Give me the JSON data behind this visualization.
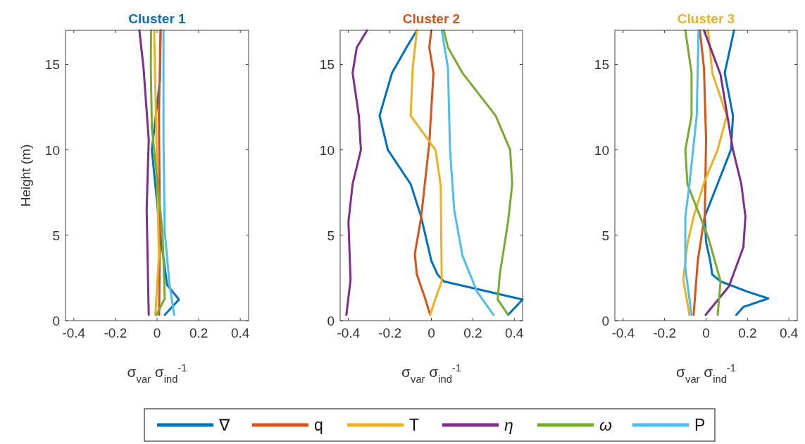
{
  "chart_data": [
    {
      "type": "line",
      "title": "Cluster 1",
      "xlabel": "σ$_{var}$ σ$_{ind}$$^{-1}$",
      "ylabel": "Height (m)",
      "xlim": [
        -0.44,
        0.44
      ],
      "ylim": [
        0,
        17
      ],
      "xticks": [
        -0.4,
        -0.2,
        0,
        0.2,
        0.4
      ],
      "yticks": [
        0,
        5,
        10,
        15
      ],
      "grid": false,
      "legend": "bottom",
      "line_style": "solid",
      "series": [
        {
          "name": "∇",
          "color": "#0072bd",
          "x": [
            0.037,
            0.105,
            0.048,
            0.014,
            -0.025,
            0.014,
            0.017
          ],
          "values": [
            0.34,
            1.24,
            2.1,
            5.2,
            10,
            14.1,
            17
          ]
        },
        {
          "name": "q",
          "color": "#d95319",
          "x": [
            0.01,
            0.014,
            0.009,
            0.017
          ],
          "values": [
            0.34,
            5.2,
            12,
            17
          ]
        },
        {
          "name": "T",
          "color": "#edb120",
          "x": [
            -0.008,
            0.009,
            -0.003,
            -0.014
          ],
          "values": [
            0.34,
            3.8,
            10.6,
            17
          ]
        },
        {
          "name": "η",
          "color": "#7e2f8e",
          "x": [
            -0.04,
            -0.05,
            -0.04,
            -0.065,
            -0.085
          ],
          "values": [
            0.34,
            6.5,
            10.6,
            14.8,
            17
          ]
        },
        {
          "name": "ω",
          "color": "#77ac30",
          "x": [
            -0.003,
            0.037,
            0.026,
            -0.025,
            -0.03,
            -0.029
          ],
          "values": [
            0.34,
            1.3,
            5.2,
            11.3,
            14.8,
            17
          ]
        },
        {
          "name": "P",
          "color": "#4dbeee",
          "x": [
            0.082,
            0.06,
            0.037,
            0.031,
            0.031
          ],
          "values": [
            0.34,
            2.1,
            5.2,
            10.6,
            17
          ]
        }
      ]
    },
    {
      "type": "line",
      "title": "Cluster 2",
      "xlabel": "σ$_{var}$ σ$_{ind}$$^{-1}$",
      "xlim": [
        -0.44,
        0.44
      ],
      "ylim": [
        0,
        17
      ],
      "xticks": [
        -0.4,
        -0.2,
        0,
        0.2,
        0.4
      ],
      "yticks": [
        0,
        5,
        10,
        15
      ],
      "grid": false,
      "line_style": "solid",
      "series": [
        {
          "color": "#0072bd",
          "x": [
            0.37,
            0.44,
            0.06,
            0.03,
            0.0,
            -0.05,
            -0.1,
            -0.21,
            -0.25,
            -0.19,
            -0.12,
            -0.07
          ],
          "values": [
            0.34,
            1.24,
            2.3,
            2.7,
            3.5,
            6.1,
            8,
            10,
            12,
            14.5,
            16,
            17
          ]
        },
        {
          "color": "#d95319",
          "x": [
            -0.006,
            -0.03,
            -0.07,
            -0.08,
            -0.05,
            -0.01,
            0.01,
            -0.01,
            0.0
          ],
          "values": [
            0.34,
            1.3,
            2.7,
            3.9,
            6,
            10.4,
            14.5,
            16,
            17
          ]
        },
        {
          "color": "#edb120",
          "x": [
            -0.006,
            0.02,
            0.05,
            0.045,
            0.02,
            -0.1,
            -0.09,
            -0.07
          ],
          "values": [
            0.34,
            1.3,
            2.3,
            7.9,
            10,
            12,
            14.8,
            17
          ]
        },
        {
          "color": "#7e2f8e",
          "x": [
            -0.41,
            -0.39,
            -0.4,
            -0.38,
            -0.34,
            -0.35,
            -0.38,
            -0.36,
            -0.31
          ],
          "values": [
            0.34,
            2.4,
            5.8,
            8,
            10,
            12,
            14.5,
            16,
            17
          ]
        },
        {
          "color": "#77ac30",
          "x": [
            0.37,
            0.32,
            0.33,
            0.37,
            0.39,
            0.38,
            0.31,
            0.15,
            0.08,
            0.06
          ],
          "values": [
            0.34,
            1.24,
            2.7,
            5.8,
            8,
            10,
            12,
            14.5,
            16,
            17
          ]
        },
        {
          "color": "#4dbeee",
          "x": [
            0.3,
            0.22,
            0.15,
            0.11,
            0.09,
            0.08,
            0.05
          ],
          "values": [
            0.34,
            1.7,
            3.8,
            6.5,
            10,
            14.8,
            17
          ]
        }
      ]
    },
    {
      "type": "line",
      "title": "Cluster 3",
      "xlabel": "σ$_{var}$ σ$_{ind}$$^{-1}$",
      "xlim": [
        -0.44,
        0.44
      ],
      "ylim": [
        0,
        17
      ],
      "xticks": [
        -0.4,
        -0.2,
        0,
        0.2,
        0.4
      ],
      "yticks": [
        0,
        5,
        10,
        15
      ],
      "grid": false,
      "line_style": "solid",
      "series": [
        {
          "color": "#0072bd",
          "x": [
            0.146,
            0.18,
            0.3,
            0.2,
            0.07,
            0.03,
            0.02,
            0.0,
            -0.006,
            0.12,
            0.13,
            0.09,
            0.135
          ],
          "values": [
            0.34,
            0.8,
            1.3,
            1.7,
            2.3,
            2.7,
            3.5,
            4.6,
            6.1,
            10,
            12,
            14.5,
            17
          ]
        },
        {
          "color": "#d95319",
          "x": [
            -0.06,
            -0.04,
            -0.006,
            0.0,
            -0.01,
            -0.03
          ],
          "values": [
            0.34,
            3.5,
            6.2,
            10.6,
            14.8,
            17
          ]
        },
        {
          "color": "#edb120",
          "x": [
            -0.08,
            -0.11,
            -0.09,
            -0.06,
            -0.006,
            0.056,
            0.1,
            0.03,
            0.01
          ],
          "values": [
            0.34,
            2.4,
            4.5,
            6.1,
            8.2,
            10,
            12,
            14.5,
            17
          ]
        },
        {
          "color": "#7e2f8e",
          "x": [
            -0.002,
            0.11,
            0.18,
            0.19,
            0.17,
            0.13,
            0.07,
            -0.01
          ],
          "values": [
            0.34,
            2,
            4.3,
            6.1,
            8,
            10,
            14.4,
            17
          ]
        },
        {
          "color": "#77ac30",
          "x": [
            0.056,
            0.07,
            0.01,
            -0.09,
            -0.1,
            -0.07,
            -0.07,
            -0.1
          ],
          "values": [
            0.34,
            2.3,
            4.9,
            8,
            10,
            12,
            14.5,
            17
          ]
        },
        {
          "color": "#4dbeee",
          "x": [
            -0.07,
            -0.1,
            -0.1,
            -0.08,
            -0.045,
            -0.036
          ],
          "values": [
            0.34,
            3.1,
            6.1,
            8,
            12,
            17
          ]
        }
      ]
    }
  ]
}
